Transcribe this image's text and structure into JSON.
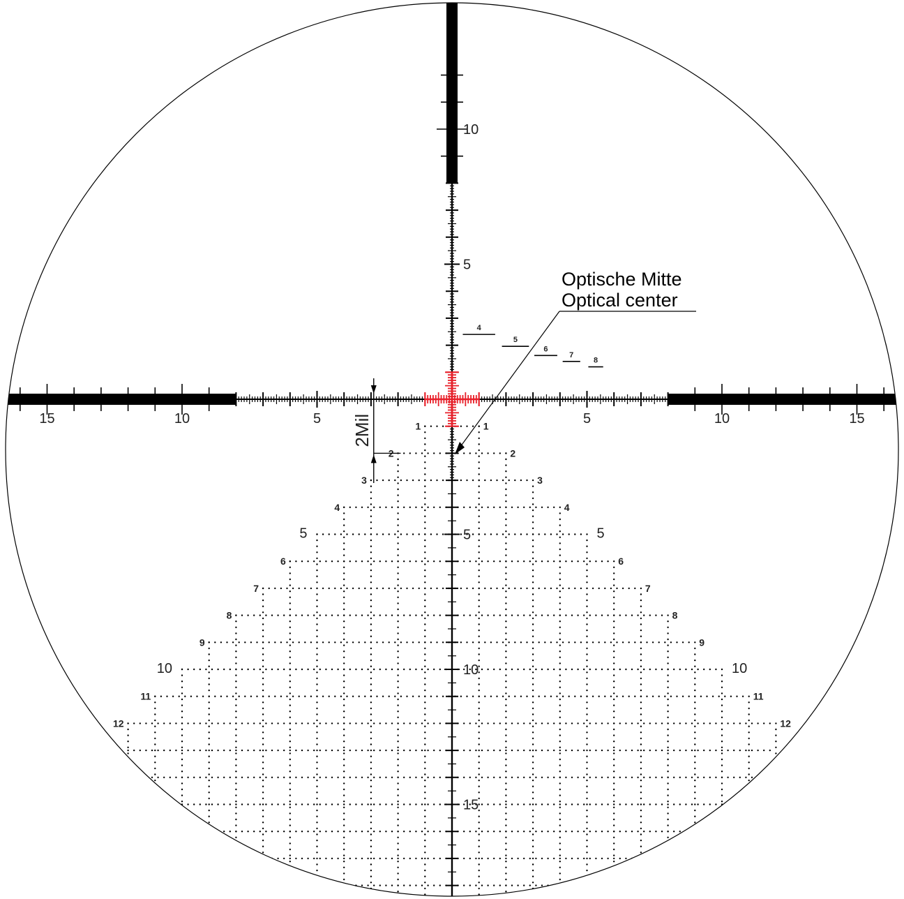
{
  "colors": {
    "ink": "#000000",
    "accent": "#e8202a",
    "label": "#222222"
  },
  "scale_unit": "Mil",
  "horizontal_axis_labels": {
    "left": [
      "15",
      "10",
      "5"
    ],
    "right": [
      "5",
      "10",
      "15"
    ]
  },
  "vertical_axis_labels": {
    "above": [
      "10",
      "5"
    ],
    "below": [
      "5",
      "10",
      "15"
    ]
  },
  "range_marks": [
    "4",
    "5",
    "6",
    "7",
    "8"
  ],
  "holdover_rows": [
    "1",
    "2",
    "3",
    "4",
    "5",
    "6",
    "7",
    "8",
    "9",
    "10",
    "11",
    "12"
  ],
  "dimension": {
    "label": "2Mil"
  },
  "callout": {
    "line1": "Optische Mitte",
    "line2": "Optical center"
  }
}
